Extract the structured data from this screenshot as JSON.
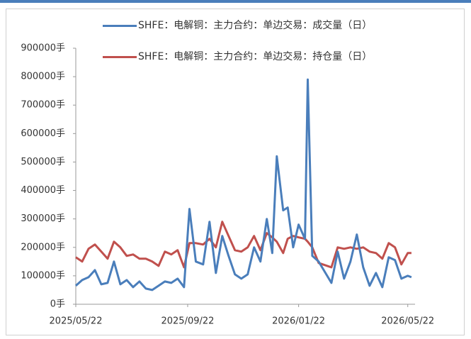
{
  "chart_data": {
    "type": "line",
    "x": [
      "2025/05/22",
      "2025/05/29",
      "2025/06/05",
      "2025/06/12",
      "2025/06/19",
      "2025/06/26",
      "2025/07/03",
      "2025/07/10",
      "2025/07/17",
      "2025/07/24",
      "2025/07/31",
      "2025/08/07",
      "2025/08/14",
      "2025/08/21",
      "2025/08/28",
      "2025/09/04",
      "2025/09/11",
      "2025/09/18",
      "2025/09/24",
      "2025/10/01",
      "2025/10/09",
      "2025/10/16",
      "2025/10/23",
      "2025/10/30",
      "2025/11/06",
      "2025/11/13",
      "2025/11/20",
      "2025/11/27",
      "2025/12/04",
      "2025/12/11",
      "2025/12/18",
      "2025/12/24",
      "2025/12/29",
      "2026/01/05",
      "2026/01/10",
      "2026/01/16",
      "2026/01/22",
      "2026/01/29",
      "2026/02/01",
      "2026/02/06",
      "2026/02/13",
      "2026/02/27",
      "2026/03/06",
      "2026/03/13",
      "2026/03/20",
      "2026/03/27",
      "2026/04/03",
      "2026/04/10",
      "2026/04/17",
      "2026/04/24",
      "2026/05/01",
      "2026/05/08",
      "2026/05/15",
      "2026/05/22",
      "2026/05/26"
    ],
    "series": [
      {
        "name": "SHFE：电解铜：主力合约：单边交易：成交量（日）",
        "color": "#4a7ebb",
        "values": [
          65000,
          85000,
          95000,
          120000,
          70000,
          75000,
          150000,
          70000,
          85000,
          60000,
          80000,
          55000,
          50000,
          65000,
          80000,
          75000,
          90000,
          60000,
          335000,
          150000,
          140000,
          290000,
          110000,
          240000,
          170000,
          105000,
          90000,
          105000,
          200000,
          150000,
          300000,
          180000,
          520000,
          330000,
          340000,
          200000,
          280000,
          230000,
          790000,
          170000,
          150000,
          75000,
          185000,
          90000,
          150000,
          245000,
          130000,
          65000,
          110000,
          60000,
          165000,
          155000,
          90000,
          100000,
          95000
        ]
      },
      {
        "name": "SHFE：电解铜：主力合约：单边交易：持仓量（日）",
        "color": "#c0504d",
        "values": [
          165000,
          150000,
          195000,
          210000,
          185000,
          160000,
          220000,
          200000,
          170000,
          175000,
          160000,
          160000,
          150000,
          135000,
          185000,
          175000,
          190000,
          130000,
          215000,
          215000,
          210000,
          230000,
          200000,
          290000,
          240000,
          190000,
          185000,
          200000,
          240000,
          190000,
          250000,
          235000,
          220000,
          180000,
          230000,
          240000,
          235000,
          230000,
          220000,
          200000,
          145000,
          130000,
          200000,
          195000,
          200000,
          195000,
          200000,
          185000,
          180000,
          160000,
          215000,
          200000,
          140000,
          180000,
          180000
        ]
      }
    ],
    "xlim": [
      "2025/05/22",
      "2026/05/30"
    ],
    "xticks": [
      "2025/05/22",
      "2025/09/22",
      "2026/01/22",
      "2026/05/22"
    ],
    "ylim": [
      0,
      900000
    ],
    "yticks": [
      {
        "value": 0,
        "label": "0手"
      },
      {
        "value": 100000,
        "label": "100000手"
      },
      {
        "value": 200000,
        "label": "200000手"
      },
      {
        "value": 300000,
        "label": "300000手"
      },
      {
        "value": 400000,
        "label": "400000手"
      },
      {
        "value": 500000,
        "label": "500000手"
      },
      {
        "value": 600000,
        "label": "600000手"
      },
      {
        "value": 700000,
        "label": "700000手"
      },
      {
        "value": 800000,
        "label": "800000手"
      },
      {
        "value": 900000,
        "label": "900000手"
      }
    ]
  }
}
